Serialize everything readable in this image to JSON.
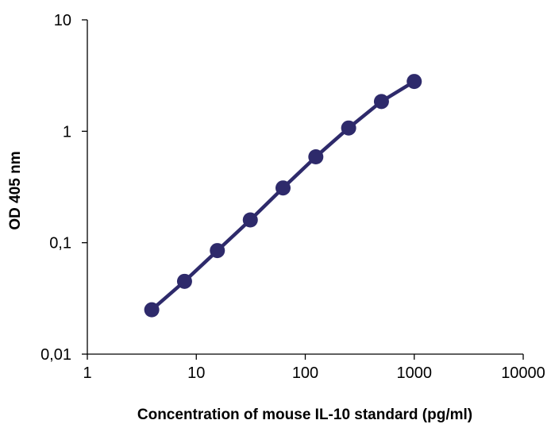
{
  "chart_data": {
    "type": "line",
    "title": "",
    "xlabel": "Concentration of mouse IL-10 standard (pg/ml)",
    "ylabel": "OD 405 nm",
    "xscale": "log",
    "yscale": "log",
    "xlim": [
      1,
      10000
    ],
    "ylim": [
      0.01,
      10
    ],
    "x_ticks": [
      1,
      10,
      100,
      1000,
      10000
    ],
    "x_tick_labels": [
      "1",
      "10",
      "100",
      "1000",
      "10000"
    ],
    "y_ticks": [
      0.01,
      0.1,
      1,
      10
    ],
    "y_tick_labels": [
      "0,01",
      "0,1",
      "1",
      "10"
    ],
    "grid": false,
    "legend": "none",
    "series": [
      {
        "x": [
          3.9,
          7.8,
          15.6,
          31.3,
          62.5,
          125,
          250,
          500,
          1000
        ],
        "y": [
          0.025,
          0.045,
          0.085,
          0.16,
          0.31,
          0.59,
          1.07,
          1.85,
          2.8
        ],
        "color": "#2e2a6b",
        "marker": "circle"
      }
    ]
  }
}
